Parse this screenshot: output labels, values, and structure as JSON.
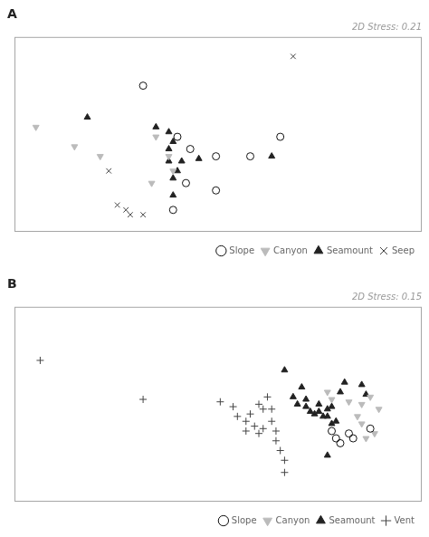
{
  "chart_data": [
    {
      "type": "scatter",
      "title": "A",
      "subtitle": "2D Stress: 0.21",
      "xlim": [
        0.0,
        0.95
      ],
      "ylim": [
        0.18,
        0.98
      ],
      "tick_labels": false,
      "grid": false,
      "legend": "lower right",
      "series": [
        {
          "name": "Slope",
          "color": "#111111",
          "marker": "circle_open",
          "x": [
            0.3,
            0.38,
            0.41,
            0.47,
            0.55,
            0.62,
            0.4,
            0.47,
            0.37
          ],
          "values": [
            0.78,
            0.57,
            0.52,
            0.49,
            0.49,
            0.57,
            0.38,
            0.35,
            0.27
          ]
        },
        {
          "name": "Canyon",
          "color": "#bbbbbb",
          "marker": "triangle_down",
          "x": [
            0.05,
            0.14,
            0.2,
            0.33,
            0.36,
            0.37,
            0.32
          ],
          "values": [
            0.61,
            0.53,
            0.49,
            0.57,
            0.49,
            0.43,
            0.38
          ]
        },
        {
          "name": "Seamount",
          "color": "#222222",
          "marker": "triangle_up",
          "x": [
            0.17,
            0.33,
            0.36,
            0.37,
            0.36,
            0.36,
            0.39,
            0.43,
            0.38,
            0.37,
            0.37,
            0.6
          ],
          "values": [
            0.65,
            0.61,
            0.59,
            0.55,
            0.52,
            0.47,
            0.47,
            0.48,
            0.43,
            0.4,
            0.33,
            0.49
          ]
        },
        {
          "name": "Seep",
          "color": "#444444",
          "marker": "x",
          "x": [
            0.65,
            0.22,
            0.24,
            0.26,
            0.27,
            0.3
          ],
          "values": [
            0.9,
            0.43,
            0.29,
            0.27,
            0.25,
            0.25
          ]
        }
      ]
    },
    {
      "type": "scatter",
      "title": "B",
      "subtitle": "2D Stress: 0.15",
      "xlim": [
        0.0,
        0.95
      ],
      "ylim": [
        0.18,
        0.98
      ],
      "tick_labels": false,
      "grid": false,
      "legend": "lower right",
      "series": [
        {
          "name": "Slope",
          "color": "#111111",
          "marker": "circle_open",
          "x": [
            0.74,
            0.75,
            0.76,
            0.78,
            0.79,
            0.83
          ],
          "values": [
            0.47,
            0.44,
            0.42,
            0.46,
            0.44,
            0.48
          ]
        },
        {
          "name": "Canyon",
          "color": "#bbbbbb",
          "marker": "triangle_down",
          "x": [
            0.73,
            0.74,
            0.78,
            0.81,
            0.8,
            0.81,
            0.83,
            0.85,
            0.82,
            0.84
          ],
          "values": [
            0.63,
            0.6,
            0.59,
            0.58,
            0.53,
            0.5,
            0.61,
            0.56,
            0.44,
            0.46
          ]
        },
        {
          "name": "Seamount",
          "color": "#222222",
          "marker": "triangle_up",
          "x": [
            0.63,
            0.67,
            0.65,
            0.66,
            0.68,
            0.68,
            0.69,
            0.7,
            0.71,
            0.71,
            0.72,
            0.73,
            0.73,
            0.74,
            0.74,
            0.75,
            0.76,
            0.77,
            0.81,
            0.82,
            0.73
          ],
          "values": [
            0.72,
            0.65,
            0.61,
            0.58,
            0.6,
            0.57,
            0.55,
            0.54,
            0.58,
            0.55,
            0.53,
            0.56,
            0.53,
            0.57,
            0.5,
            0.51,
            0.63,
            0.67,
            0.66,
            0.62,
            0.37
          ]
        },
        {
          "name": "Vent",
          "color": "#444444",
          "marker": "plus",
          "x": [
            0.06,
            0.3,
            0.48,
            0.51,
            0.52,
            0.54,
            0.54,
            0.55,
            0.56,
            0.57,
            0.57,
            0.58,
            0.58,
            0.59,
            0.6,
            0.6,
            0.61,
            0.61,
            0.62,
            0.63,
            0.63
          ],
          "values": [
            0.76,
            0.6,
            0.59,
            0.57,
            0.53,
            0.51,
            0.47,
            0.54,
            0.49,
            0.46,
            0.58,
            0.48,
            0.56,
            0.61,
            0.51,
            0.56,
            0.47,
            0.43,
            0.39,
            0.35,
            0.3
          ]
        }
      ]
    }
  ]
}
